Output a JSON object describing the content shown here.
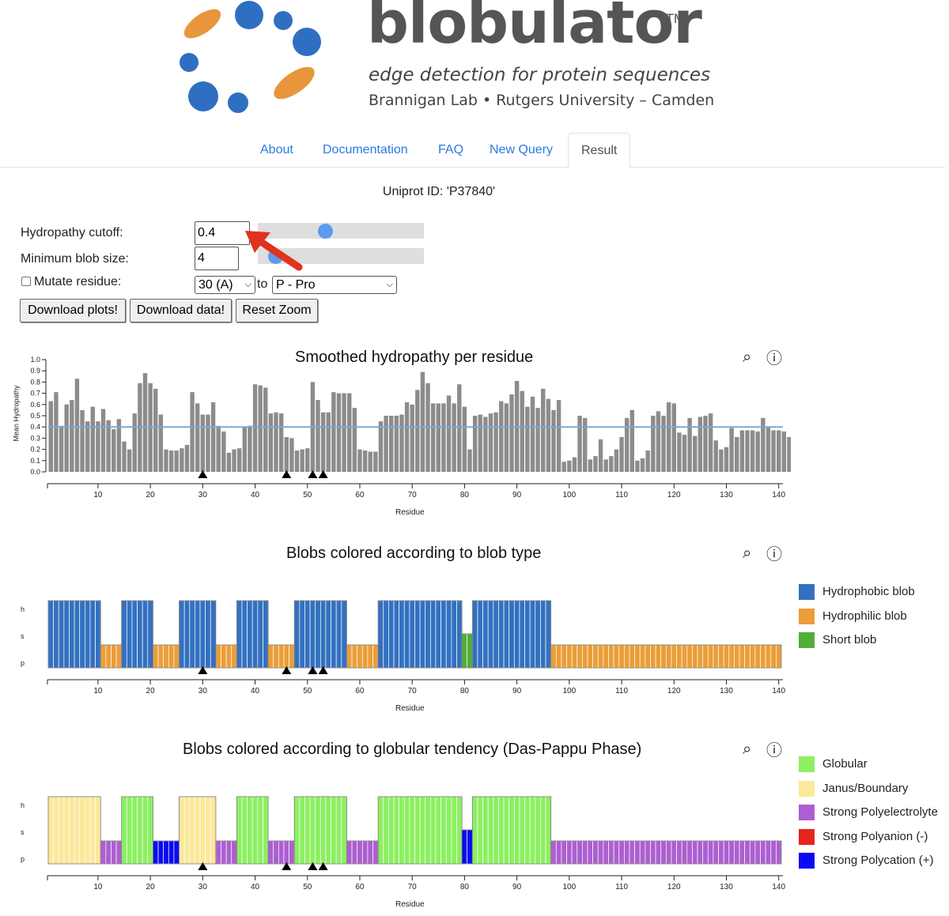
{
  "header": {
    "brand": "blobulator",
    "trademark": "TM",
    "tagline": "edge detection for protein sequences",
    "affiliation": "Brannigan Lab • Rutgers University – Camden",
    "colors": {
      "orange": "#e8963c",
      "blue": "#2f6fc1"
    }
  },
  "nav": {
    "tabs": [
      {
        "label": "About",
        "active": false
      },
      {
        "label": "Documentation",
        "active": false
      },
      {
        "label": "FAQ",
        "active": false
      },
      {
        "label": "New Query",
        "active": false
      },
      {
        "label": "Result",
        "active": true
      }
    ]
  },
  "uniprot_line": "Uniprot ID: 'P37840'",
  "controls": {
    "hydropathy_label": "Hydropathy cutoff:",
    "hydropathy_value": "0.4",
    "hydropathy_slider_fraction": 0.4,
    "min_blob_label": "Minimum blob size:",
    "min_blob_value": "4",
    "min_blob_slider_fraction": 0.07,
    "mutate_label": "Mutate residue:",
    "mutate_checked": false,
    "mutate_residue_selected": "30 (A)",
    "to_label": "to",
    "mutate_target_selected": "P - Pro",
    "buttons": [
      "Download plots!",
      "Download data!",
      "Reset Zoom"
    ],
    "annotation": {
      "type": "red-arrow",
      "points_to": "hydropathy-cutoff-input",
      "color": "#e0321e"
    }
  },
  "tools": {
    "zoom_icon": "zoom-icon",
    "info_icon": "info-icon"
  },
  "colors": {
    "bar_gray": "#8c8c8c",
    "cutoff_line": "#7aa7dc",
    "hydrophobic": "#3371c0",
    "hydrophilic": "#eb9e38",
    "short": "#52ad3a",
    "globular": "#8cf061",
    "janus": "#fbe89a",
    "polyelectrolyte": "#ad5fd0",
    "polyanion": "#e4251c",
    "polycation": "#0b0bf2"
  },
  "chart_data": [
    {
      "type": "bar",
      "title": "Smoothed hydropathy per residue",
      "xlabel": "Residue",
      "ylabel": "Mean Hydropathy",
      "ylim": [
        0,
        1.0
      ],
      "xlim": [
        1,
        140
      ],
      "yticks": [
        "0.0",
        "0.1",
        "0.2",
        "0.3",
        "0.4",
        "0.5",
        "0.6",
        "0.7",
        "0.8",
        "0.9",
        "1.0"
      ],
      "xticks": [
        "10",
        "20",
        "30",
        "40",
        "50",
        "60",
        "70",
        "80",
        "90",
        "100",
        "110",
        "120",
        "130",
        "140"
      ],
      "cutoff_line": 0.4,
      "mutation_markers": [
        30,
        46,
        51,
        53
      ],
      "values": [
        0.63,
        0.71,
        0.41,
        0.6,
        0.64,
        0.83,
        0.55,
        0.45,
        0.58,
        0.45,
        0.56,
        0.46,
        0.38,
        0.47,
        0.27,
        0.2,
        0.52,
        0.79,
        0.88,
        0.79,
        0.74,
        0.51,
        0.2,
        0.19,
        0.19,
        0.21,
        0.24,
        0.71,
        0.61,
        0.51,
        0.51,
        0.62,
        0.41,
        0.36,
        0.17,
        0.2,
        0.21,
        0.4,
        0.41,
        0.78,
        0.77,
        0.75,
        0.52,
        0.53,
        0.52,
        0.31,
        0.3,
        0.19,
        0.2,
        0.21,
        0.8,
        0.64,
        0.53,
        0.53,
        0.71,
        0.7,
        0.7,
        0.7,
        0.57,
        0.2,
        0.19,
        0.18,
        0.18,
        0.45,
        0.5,
        0.5,
        0.5,
        0.51,
        0.62,
        0.6,
        0.73,
        0.89,
        0.79,
        0.61,
        0.61,
        0.61,
        0.68,
        0.61,
        0.78,
        0.58,
        0.2,
        0.5,
        0.51,
        0.49,
        0.52,
        0.53,
        0.63,
        0.61,
        0.69,
        0.81,
        0.72,
        0.58,
        0.67,
        0.57,
        0.74,
        0.65,
        0.55,
        0.64,
        0.09,
        0.1,
        0.13,
        0.5,
        0.48,
        0.11,
        0.14,
        0.29,
        0.11,
        0.14,
        0.2,
        0.31,
        0.48,
        0.55,
        0.1,
        0.12,
        0.19,
        0.5,
        0.54,
        0.5,
        0.62,
        0.61,
        0.35,
        0.33,
        0.48,
        0.32,
        0.49,
        0.5,
        0.52,
        0.28,
        0.2,
        0.22,
        0.39,
        0.31,
        0.37,
        0.37,
        0.37,
        0.36,
        0.48,
        0.4,
        0.37,
        0.37,
        0.36,
        0.31,
        0.44,
        0.24
      ],
      "cutoff_value_label": ""
    },
    {
      "type": "bar",
      "title": "Blobs colored according to blob type",
      "xlabel": "Residue",
      "yticks": [
        "h",
        "s",
        "p"
      ],
      "xticks": [
        "10",
        "20",
        "30",
        "40",
        "50",
        "60",
        "70",
        "80",
        "90",
        "100",
        "110",
        "120",
        "130",
        "140"
      ],
      "mutation_markers": [
        30,
        46,
        51,
        53
      ],
      "segments": [
        {
          "start": 1,
          "end": 10,
          "type": "h"
        },
        {
          "start": 11,
          "end": 14,
          "type": "p"
        },
        {
          "start": 15,
          "end": 20,
          "type": "h"
        },
        {
          "start": 21,
          "end": 25,
          "type": "p"
        },
        {
          "start": 26,
          "end": 32,
          "type": "h"
        },
        {
          "start": 33,
          "end": 36,
          "type": "p"
        },
        {
          "start": 37,
          "end": 42,
          "type": "h"
        },
        {
          "start": 43,
          "end": 47,
          "type": "p"
        },
        {
          "start": 48,
          "end": 57,
          "type": "h"
        },
        {
          "start": 58,
          "end": 63,
          "type": "p"
        },
        {
          "start": 64,
          "end": 79,
          "type": "h"
        },
        {
          "start": 80,
          "end": 81,
          "type": "s"
        },
        {
          "start": 82,
          "end": 96,
          "type": "h"
        },
        {
          "start": 97,
          "end": 140,
          "type": "p"
        }
      ],
      "legend": [
        {
          "label": "Hydrophobic blob",
          "color": "#3371c0"
        },
        {
          "label": "Hydrophilic blob",
          "color": "#eb9e38"
        },
        {
          "label": "Short blob",
          "color": "#52ad3a"
        }
      ]
    },
    {
      "type": "bar",
      "title": "Blobs colored according to globular tendency (Das-Pappu Phase)",
      "xlabel": "Residue",
      "yticks": [
        "h",
        "s",
        "p"
      ],
      "xticks": [
        "10",
        "20",
        "30",
        "40",
        "50",
        "60",
        "70",
        "80",
        "90",
        "100",
        "110",
        "120",
        "130",
        "140"
      ],
      "mutation_markers": [
        30,
        46,
        51,
        53
      ],
      "segments": [
        {
          "start": 1,
          "end": 10,
          "type": "h",
          "phase": "janus"
        },
        {
          "start": 11,
          "end": 14,
          "type": "p",
          "phase": "polyelectrolyte"
        },
        {
          "start": 15,
          "end": 20,
          "type": "h",
          "phase": "globular"
        },
        {
          "start": 21,
          "end": 25,
          "type": "p",
          "phase": "polycation"
        },
        {
          "start": 26,
          "end": 32,
          "type": "h",
          "phase": "janus"
        },
        {
          "start": 33,
          "end": 36,
          "type": "p",
          "phase": "polyelectrolyte"
        },
        {
          "start": 37,
          "end": 42,
          "type": "h",
          "phase": "globular"
        },
        {
          "start": 43,
          "end": 47,
          "type": "p",
          "phase": "polyelectrolyte"
        },
        {
          "start": 48,
          "end": 57,
          "type": "h",
          "phase": "globular"
        },
        {
          "start": 58,
          "end": 63,
          "type": "p",
          "phase": "polyelectrolyte"
        },
        {
          "start": 64,
          "end": 79,
          "type": "h",
          "phase": "globular"
        },
        {
          "start": 80,
          "end": 81,
          "type": "s",
          "phase": "polycation"
        },
        {
          "start": 82,
          "end": 96,
          "type": "h",
          "phase": "globular"
        },
        {
          "start": 97,
          "end": 140,
          "type": "p",
          "phase": "polyelectrolyte"
        }
      ],
      "legend": [
        {
          "label": "Globular",
          "color": "#8cf061"
        },
        {
          "label": "Janus/Boundary",
          "color": "#fbe89a"
        },
        {
          "label": "Strong Polyelectrolyte",
          "color": "#ad5fd0"
        },
        {
          "label": "Strong Polyanion (-)",
          "color": "#e4251c"
        },
        {
          "label": "Strong Polycation (+)",
          "color": "#0b0bf2"
        }
      ]
    }
  ]
}
